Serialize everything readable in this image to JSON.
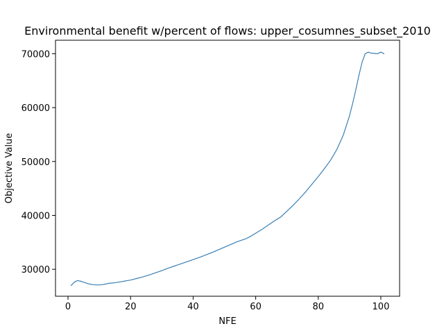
{
  "chart_data": {
    "type": "line",
    "title": "Environmental benefit w/percent of flows: upper_cosumnes_subset_2010",
    "xlabel": "NFE",
    "ylabel": "Objective Value",
    "xlim": [
      -4,
      106
    ],
    "ylim": [
      25000,
      72500
    ],
    "xticks": [
      0,
      20,
      40,
      60,
      80,
      100
    ],
    "yticks": [
      30000,
      40000,
      50000,
      60000,
      70000
    ],
    "xtick_labels": [
      "0",
      "20",
      "40",
      "60",
      "80",
      "100"
    ],
    "ytick_labels": [
      "30000",
      "40000",
      "50000",
      "60000",
      "70000"
    ],
    "grid": false,
    "series": [
      {
        "color": "#3a7fb4",
        "x": [
          1,
          2,
          3,
          4,
          5,
          6,
          7,
          8,
          9,
          10,
          11,
          12,
          13,
          14,
          15,
          16,
          17,
          18,
          19,
          20,
          22,
          24,
          26,
          28,
          30,
          32,
          34,
          36,
          38,
          40,
          42,
          44,
          46,
          48,
          50,
          52,
          54,
          56,
          57,
          58,
          60,
          62,
          64,
          66,
          68,
          70,
          72,
          74,
          76,
          78,
          80,
          82,
          84,
          86,
          88,
          90,
          91,
          92,
          93,
          94,
          95,
          96,
          97,
          98,
          99,
          100,
          101
        ],
        "y": [
          27000,
          27600,
          27900,
          27800,
          27600,
          27400,
          27250,
          27150,
          27100,
          27100,
          27150,
          27250,
          27400,
          27450,
          27500,
          27600,
          27700,
          27800,
          27900,
          28000,
          28300,
          28600,
          28950,
          29350,
          29750,
          30200,
          30600,
          31000,
          31400,
          31800,
          32200,
          32650,
          33100,
          33600,
          34100,
          34600,
          35100,
          35500,
          35700,
          36000,
          36700,
          37400,
          38200,
          39000,
          39700,
          40800,
          41900,
          43100,
          44400,
          45800,
          47200,
          48700,
          50300,
          52300,
          54900,
          58500,
          60800,
          63300,
          66000,
          68400,
          70000,
          70300,
          70100,
          70050,
          70000,
          70300,
          70000
        ]
      }
    ]
  }
}
